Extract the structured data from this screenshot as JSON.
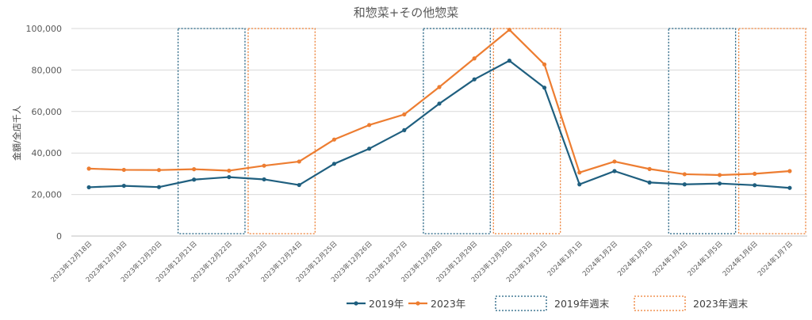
{
  "chart_data": {
    "type": "line",
    "title": "和惣菜+その他惣菜",
    "xlabel": "",
    "ylabel": "金額/全店千人",
    "ylim": [
      0,
      100000
    ],
    "yticks": [
      "0",
      "20,000",
      "40,000",
      "60,000",
      "80,000",
      "100,000"
    ],
    "ytick_values": [
      0,
      20000,
      40000,
      60000,
      80000,
      100000
    ],
    "grid": "horizontal",
    "legend_position": "bottom",
    "categories": [
      "2023年12月18日",
      "2023年12月19日",
      "2023年12月20日",
      "2023年12月21日",
      "2023年12月22日",
      "2023年12月23日",
      "2023年12月24日",
      "2023年12月25日",
      "2023年12月26日",
      "2023年12月27日",
      "2023年12月28日",
      "2023年12月29日",
      "2023年12月30日",
      "2023年12月31日",
      "2024年1月1日",
      "2024年1月2日",
      "2024年1月3日",
      "2024年1月4日",
      "2024年1月5日",
      "2024年1月6日",
      "2024年1月7日"
    ],
    "series": [
      {
        "name": "2019年",
        "color": "#1f5f7f",
        "values": [
          23500,
          24200,
          23600,
          27200,
          28400,
          27300,
          24600,
          34800,
          42100,
          51000,
          63800,
          75500,
          84500,
          71500,
          24900,
          31300,
          25800,
          24900,
          25300,
          24500,
          23200
        ]
      },
      {
        "name": "2023年",
        "color": "#ed7d31",
        "values": [
          32500,
          31900,
          31800,
          32200,
          31500,
          33900,
          35900,
          46500,
          53500,
          58600,
          71800,
          85600,
          99400,
          82700,
          30600,
          35900,
          32300,
          29800,
          29400,
          30000,
          31300
        ]
      }
    ],
    "weekend_boxes": [
      {
        "name": "2019年週末",
        "color": "#1f5f7f",
        "start": "2023年12月21日",
        "end": "2023年12月22日"
      },
      {
        "name": "2023年週末",
        "color": "#ed7d31",
        "start": "2023年12月23日",
        "end": "2023年12月24日"
      },
      {
        "name": "2019年週末",
        "color": "#1f5f7f",
        "start": "2023年12月28日",
        "end": "2023年12月29日"
      },
      {
        "name": "2023年週末",
        "color": "#ed7d31",
        "start": "2023年12月30日",
        "end": "2023年12月31日"
      },
      {
        "name": "2019年週末",
        "color": "#1f5f7f",
        "start": "2024年1月4日",
        "end": "2024年1月5日"
      },
      {
        "name": "2023年週末",
        "color": "#ed7d31",
        "start": "2024年1月6日",
        "end": "2024年1月7日"
      }
    ],
    "legend": [
      {
        "label": "2019年",
        "kind": "line",
        "color": "#1f5f7f"
      },
      {
        "label": "2023年",
        "kind": "line",
        "color": "#ed7d31"
      },
      {
        "label": "2019年週末",
        "kind": "box",
        "color": "#1f5f7f"
      },
      {
        "label": "2023年週末",
        "kind": "box",
        "color": "#ed7d31"
      }
    ]
  }
}
